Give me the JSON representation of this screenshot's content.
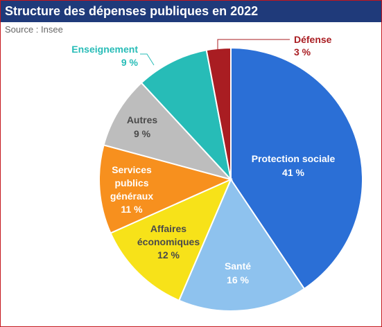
{
  "header": {
    "title": "Structure des dépenses publiques en 2022",
    "source": "Source : Insee"
  },
  "colors": {
    "frame": "#c4161c",
    "title_bar": "#1f3a7a",
    "title_text": "#ffffff"
  },
  "chart_data": {
    "type": "pie",
    "title": "Structure des dépenses publiques en 2022",
    "unit": "%",
    "slices": [
      {
        "label": "Protection sociale",
        "value_label": "41 %",
        "value": 41,
        "color": "#2b6fd6",
        "text_color": "#ffffff"
      },
      {
        "label": "Santé",
        "value_label": "16 %",
        "value": 16,
        "color": "#8ec2ee",
        "text_color": "#ffffff"
      },
      {
        "label": "Affaires économiques",
        "value_label": "12 %",
        "value": 12,
        "color": "#f7e219",
        "text_color": "#4a4a4a"
      },
      {
        "label": "Services publics généraux",
        "value_label": "11 %",
        "value": 11,
        "color": "#f7901e",
        "text_color": "#ffffff"
      },
      {
        "label": "Autres",
        "value_label": "9 %",
        "value": 9,
        "color": "#bdbdbd",
        "text_color": "#4a4a4a"
      },
      {
        "label": "Enseignement",
        "value_label": "9 %",
        "value": 9,
        "color": "#27bcb7",
        "text_color": "#27bcb7"
      },
      {
        "label": "Défense",
        "value_label": "3 %",
        "value": 3,
        "color": "#a91d22",
        "text_color": "#a91d22"
      }
    ]
  }
}
